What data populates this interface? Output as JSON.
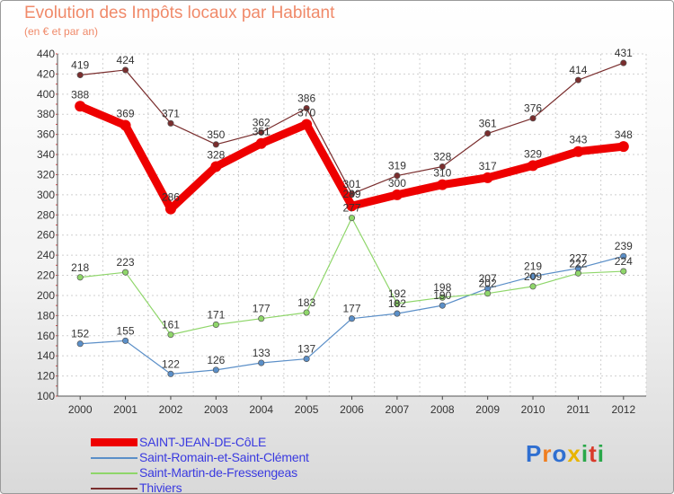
{
  "header": {
    "title": "Evolution des Impôts locaux par Habitant",
    "subtitle": "(en € et par an)"
  },
  "logo": {
    "text": "Proxiti",
    "colors": [
      "#2f6fd1",
      "#f07e1f",
      "#2f6fd1",
      "#e8b400",
      "#2aa84a",
      "#d93a2a",
      "#2aa84a"
    ]
  },
  "chart_data": {
    "type": "line",
    "title": "Evolution des Impôts locaux par Habitant",
    "subtitle": "(en € et par an)",
    "x": [
      "2000",
      "2001",
      "2002",
      "2003",
      "2004",
      "2005",
      "2006",
      "2007",
      "2008",
      "2009",
      "2010",
      "2011",
      "2012"
    ],
    "ylim": [
      100,
      440
    ],
    "yticks": [
      100,
      120,
      140,
      160,
      180,
      200,
      220,
      240,
      260,
      280,
      300,
      320,
      340,
      360,
      380,
      400,
      420,
      440
    ],
    "grid": true,
    "legend_position": "bottom-left",
    "series": [
      {
        "name": "SAINT-JEAN-DE-CôLE",
        "color": "#ee0000",
        "values": [
          388,
          369,
          286,
          328,
          351,
          370,
          289,
          300,
          310,
          317,
          329,
          343,
          348
        ],
        "labels": [
          "388",
          "369",
          "286",
          "328",
          "351",
          "370",
          "289",
          "300",
          "310",
          "317",
          "329",
          "343",
          "348"
        ]
      },
      {
        "name": "Saint-Romain-et-Saint-Clément",
        "color": "#5b8fc8",
        "values": [
          152,
          155,
          122,
          126,
          133,
          137,
          177,
          182,
          190,
          207,
          219,
          227,
          239
        ],
        "labels": [
          "152",
          "155",
          "122",
          "126",
          "133",
          "137",
          "177",
          "182",
          "190",
          "207",
          "219",
          "227",
          "239"
        ]
      },
      {
        "name": "Saint-Martin-de-Fressengeas",
        "color": "#8fd66a",
        "values": [
          218,
          223,
          161,
          171,
          177,
          183,
          277,
          192,
          198,
          202,
          209,
          222,
          224
        ],
        "labels": [
          "218",
          "223",
          "161",
          "171",
          "177",
          "183",
          "277",
          "192",
          "198",
          "202",
          "209",
          "222",
          "224"
        ]
      },
      {
        "name": "Thiviers",
        "color": "#7a2e2e",
        "values": [
          419,
          424,
          371,
          350,
          362,
          386,
          301,
          319,
          328,
          361,
          376,
          414,
          431
        ],
        "labels": [
          "419",
          "424",
          "371",
          "350",
          "362",
          "386",
          "301",
          "319",
          "328",
          "361",
          "376",
          "414",
          "431"
        ]
      }
    ]
  }
}
